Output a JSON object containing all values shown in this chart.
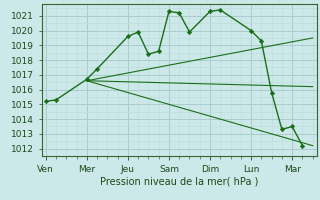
{
  "xlabel": "Pression niveau de la mer( hPa )",
  "bg_color": "#cce8e8",
  "grid_major_color": "#aacccc",
  "grid_minor_color": "#c0dddd",
  "line_color": "#1a6e1a",
  "ylim": [
    1011.5,
    1021.8
  ],
  "yticks": [
    1012,
    1013,
    1014,
    1015,
    1016,
    1017,
    1018,
    1019,
    1020,
    1021
  ],
  "day_labels": [
    "Ven",
    "Mer",
    "Jeu",
    "Sam",
    "Dim",
    "Lun",
    "Mar"
  ],
  "day_positions": [
    0,
    2,
    4,
    6,
    8,
    10,
    12
  ],
  "xlim": [
    -0.2,
    13.2
  ],
  "main_x": [
    0,
    0.5,
    2,
    2.5,
    4,
    4.5,
    5,
    5.5,
    6,
    6.5,
    7,
    8,
    8.5,
    10,
    10.5,
    11,
    11.5,
    12,
    12.5
  ],
  "main_y": [
    1015.2,
    1015.3,
    1016.7,
    1017.4,
    1019.6,
    1019.9,
    1018.4,
    1018.6,
    1021.3,
    1021.2,
    1019.9,
    1021.3,
    1021.4,
    1020.0,
    1019.3,
    1015.8,
    1013.3,
    1013.5,
    1012.2
  ],
  "trend1_x": [
    2.0,
    13.0
  ],
  "trend1_y": [
    1016.6,
    1019.5
  ],
  "trend2_x": [
    2.0,
    13.0
  ],
  "trend2_y": [
    1016.6,
    1016.2
  ],
  "trend3_x": [
    2.0,
    13.0
  ],
  "trend3_y": [
    1016.6,
    1012.2
  ]
}
